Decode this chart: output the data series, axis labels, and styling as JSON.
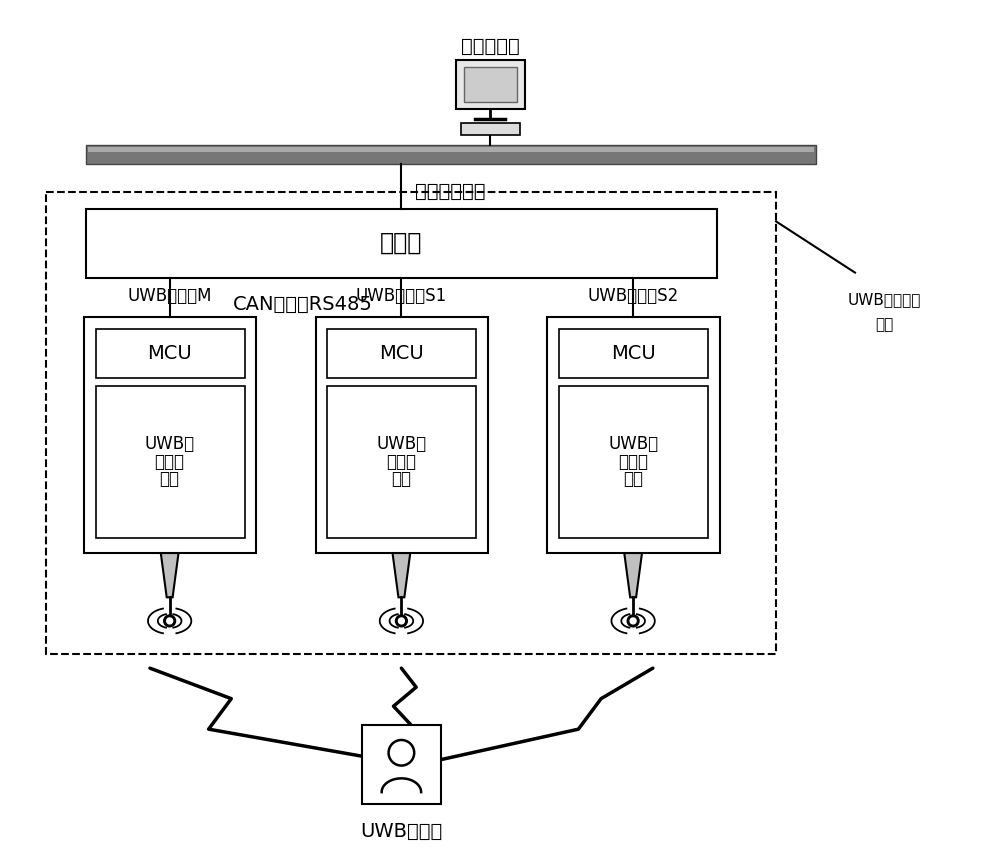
{
  "bg_color": "#ffffff",
  "server_label": "定位服务器",
  "network_label": "以太网或光纤",
  "controller_label": "集控器",
  "can_label": "CAN总线或RS485",
  "uwb_station_label_line1": "UWB定位基站",
  "uwb_station_label_line2": "单元",
  "card_label": "UWB识别卡",
  "positioner_labels": [
    "UWB定位器M",
    "UWB定位器S1",
    "UWB定位器S2"
  ],
  "mcu_label": "MCU",
  "uwb_module_lines": [
    "UWB无",
    "线收发",
    "模块"
  ],
  "font_size": 14,
  "font_size_small": 12,
  "font_size_tiny": 11
}
